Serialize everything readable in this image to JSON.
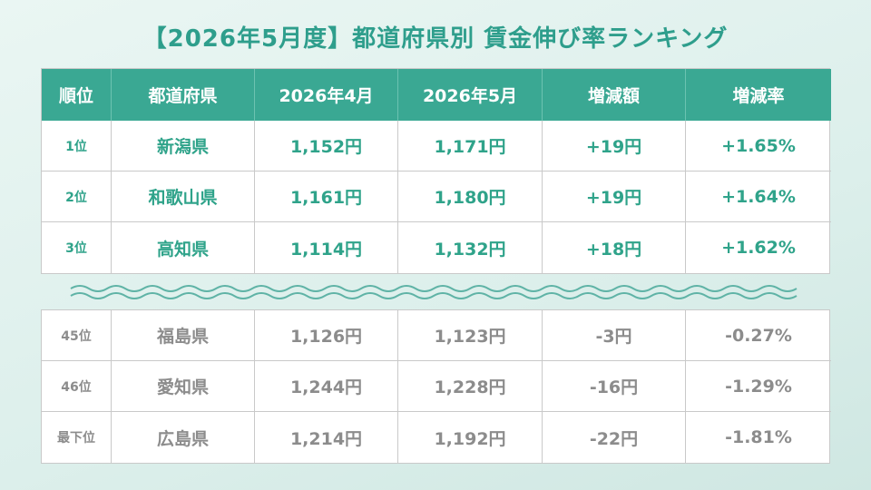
{
  "title": "【2026年5月度】都道府県別 賃金伸び率ランキング",
  "table": {
    "header": [
      "順位",
      "都道府県",
      "2026年4月",
      "2026年5月",
      "増減額",
      "増減率"
    ],
    "top_rows": [
      [
        "1位",
        "新潟県",
        "1,152円",
        "1,171円",
        "+19円",
        "+1.65%"
      ],
      [
        "2位",
        "和歌山県",
        "1,161円",
        "1,180円",
        "+19円",
        "+1.64%"
      ],
      [
        "3位",
        "高知県",
        "1,114円",
        "1,132円",
        "+18円",
        "+1.62%"
      ]
    ],
    "bottom_rows": [
      [
        "45位",
        "福島県",
        "1,126円",
        "1,123円",
        "-3円",
        "-0.27%"
      ],
      [
        "46位",
        "愛知県",
        "1,244円",
        "1,228円",
        "-16円",
        "-1.29%"
      ],
      [
        "最下位",
        "広島県",
        "1,214円",
        "1,192円",
        "-22円",
        "-1.81%"
      ]
    ]
  }
}
